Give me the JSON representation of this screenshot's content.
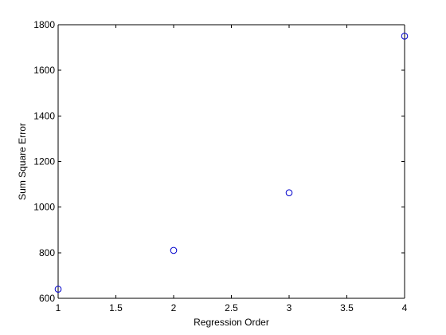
{
  "chart_data": {
    "type": "scatter",
    "title": "",
    "xlabel": "Regression Order",
    "ylabel": "Sum Square Error",
    "xlim": [
      1,
      4
    ],
    "ylim": [
      600,
      1800
    ],
    "x_ticks": [
      1,
      1.5,
      2,
      2.5,
      3,
      3.5,
      4
    ],
    "x_tick_labels": [
      "1",
      "1.5",
      "2",
      "2.5",
      "3",
      "3.5",
      "4"
    ],
    "y_ticks": [
      600,
      800,
      1000,
      1200,
      1400,
      1600,
      1800
    ],
    "y_tick_labels": [
      "600",
      "800",
      "1000",
      "1200",
      "1400",
      "1600",
      "1800"
    ],
    "grid": false,
    "marker": "circle-open",
    "marker_color": "#0000cc",
    "series": [
      {
        "x": [
          1,
          2,
          3,
          4
        ],
        "y": [
          640,
          810,
          1063,
          1750
        ]
      }
    ]
  }
}
